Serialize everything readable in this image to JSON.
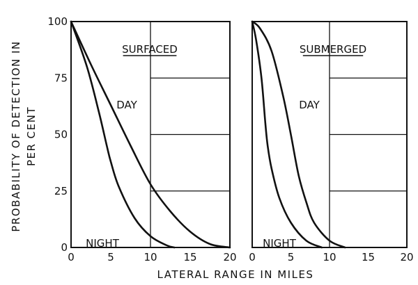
{
  "chart_data": [
    {
      "type": "line",
      "title": "SURFACED",
      "xlabel": "LATERAL RANGE IN MILES",
      "ylabel": "PROBABILITY OF DETECTION IN PER CENT",
      "xlim": [
        0,
        20
      ],
      "ylim": [
        0,
        100
      ],
      "x_ticks": [
        "0",
        "5",
        "10",
        "15",
        "20"
      ],
      "y_ticks": [
        "0",
        "25",
        "50",
        "75",
        "100"
      ],
      "grid": true,
      "series": [
        {
          "name": "DAY",
          "x": [
            0,
            2.5,
            5,
            7.5,
            10,
            12.5,
            15,
            17.5,
            20
          ],
          "y": [
            100,
            81,
            63,
            45,
            28,
            16,
            7,
            1.5,
            0
          ]
        },
        {
          "name": "NIGHT",
          "x": [
            0,
            2,
            3.5,
            4.5,
            5,
            6,
            8,
            10,
            12,
            13
          ],
          "y": [
            100,
            80,
            60,
            45,
            38,
            27,
            13,
            5,
            1,
            0
          ]
        }
      ]
    },
    {
      "type": "line",
      "title": "SUBMERGED",
      "xlabel": "LATERAL RANGE IN MILES",
      "ylabel": "PROBABILITY OF DETECTION IN PER CENT",
      "xlim": [
        0,
        20
      ],
      "ylim": [
        0,
        100
      ],
      "x_ticks": [
        "0",
        "5",
        "10",
        "15",
        "20"
      ],
      "y_ticks": [
        "0",
        "25",
        "50",
        "75",
        "100"
      ],
      "grid": true,
      "series": [
        {
          "name": "DAY",
          "x": [
            0,
            1,
            2.5,
            4,
            5,
            6,
            7,
            8,
            10,
            12
          ],
          "y": [
            100,
            97,
            87,
            67,
            50,
            32,
            20,
            11,
            3,
            0
          ]
        },
        {
          "name": "NIGHT",
          "x": [
            0,
            0.5,
            1.2,
            1.7,
            2,
            2.5,
            3.5,
            5,
            7,
            9
          ],
          "y": [
            100,
            92,
            75,
            55,
            45,
            35,
            22,
            11,
            3,
            0
          ]
        }
      ]
    }
  ]
}
